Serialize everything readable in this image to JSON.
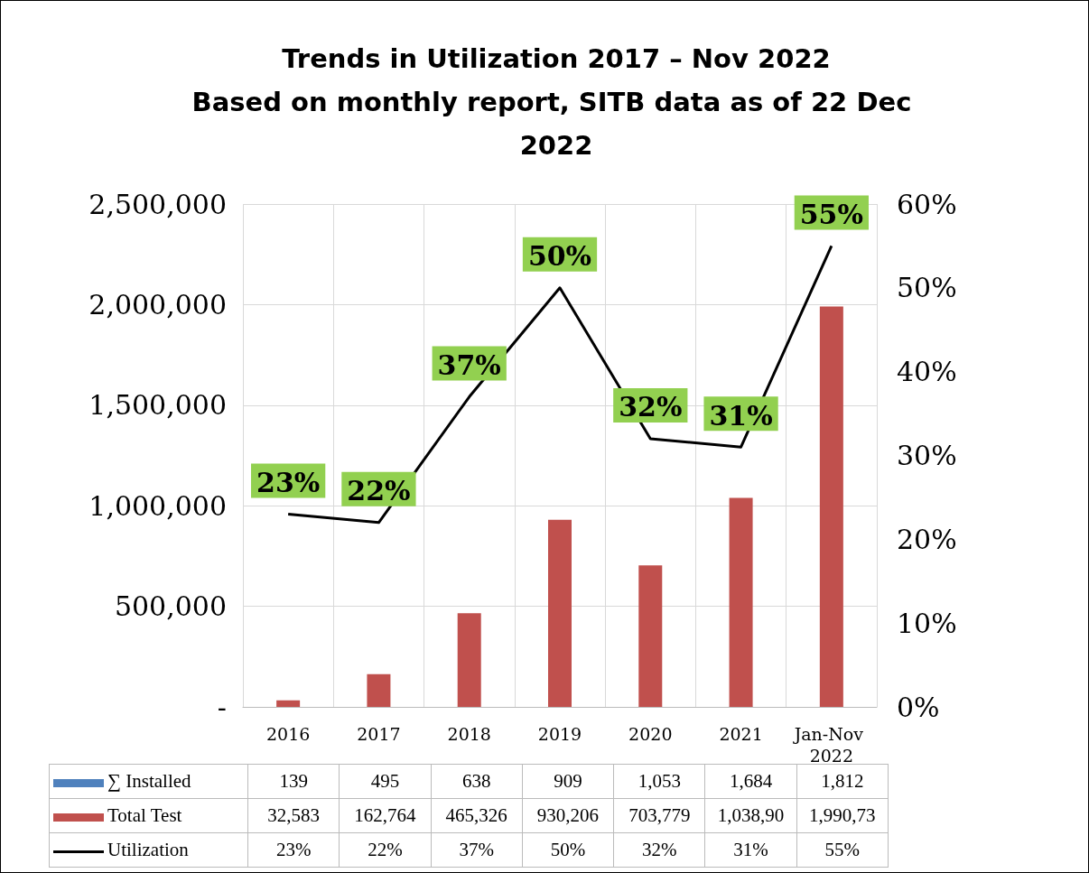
{
  "chart_data": {
    "type": "bar",
    "title": "Trends in Utilization 2017 – Nov 2022",
    "subtitle": "Based on monthly report, SITB data as of 22 Dec 2022",
    "categories": [
      "2016",
      "2017",
      "2018",
      "2019",
      "2020",
      "2021",
      "Jan-Nov 2022"
    ],
    "series": [
      {
        "name": "∑ Installed",
        "color": "#4f81bd",
        "values": [
          139,
          495,
          638,
          909,
          1053,
          1684,
          1812
        ],
        "value_labels": [
          "139",
          "495",
          "638",
          "909",
          "1,053",
          "1,684",
          "1,812"
        ]
      },
      {
        "name": "Total Test",
        "color": "#c0504d",
        "values": [
          32583,
          162764,
          465326,
          930206,
          703779,
          1038900,
          1990730
        ],
        "value_labels": [
          "32,583",
          "162,764",
          "465,326",
          "930,206",
          "703,779",
          "1,038,90",
          "1,990,73"
        ]
      },
      {
        "name": "Utilization",
        "type": "line",
        "axis": "y2",
        "color": "#000000",
        "values": [
          23,
          22,
          37,
          50,
          32,
          31,
          55
        ],
        "value_labels": [
          "23%",
          "22%",
          "37%",
          "50%",
          "32%",
          "31%",
          "55%"
        ]
      }
    ],
    "ylim": [
      0,
      2500000
    ],
    "yticks": [
      {
        "value": 0,
        "label": "-"
      },
      {
        "value": 500000,
        "label": "500,000"
      },
      {
        "value": 1000000,
        "label": "1,000,000"
      },
      {
        "value": 1500000,
        "label": "1,500,000"
      },
      {
        "value": 2000000,
        "label": "2,000,000"
      },
      {
        "value": 2500000,
        "label": "2,500,000"
      }
    ],
    "y2lim": [
      0,
      60
    ],
    "y2ticks": [
      {
        "value": 0,
        "label": "0%"
      },
      {
        "value": 10,
        "label": "10%"
      },
      {
        "value": 20,
        "label": "20%"
      },
      {
        "value": 30,
        "label": "30%"
      },
      {
        "value": 40,
        "label": "40%"
      },
      {
        "value": 50,
        "label": "50%"
      },
      {
        "value": 60,
        "label": "60%"
      }
    ],
    "grid": true,
    "legend": "bottom",
    "marker": "none"
  }
}
